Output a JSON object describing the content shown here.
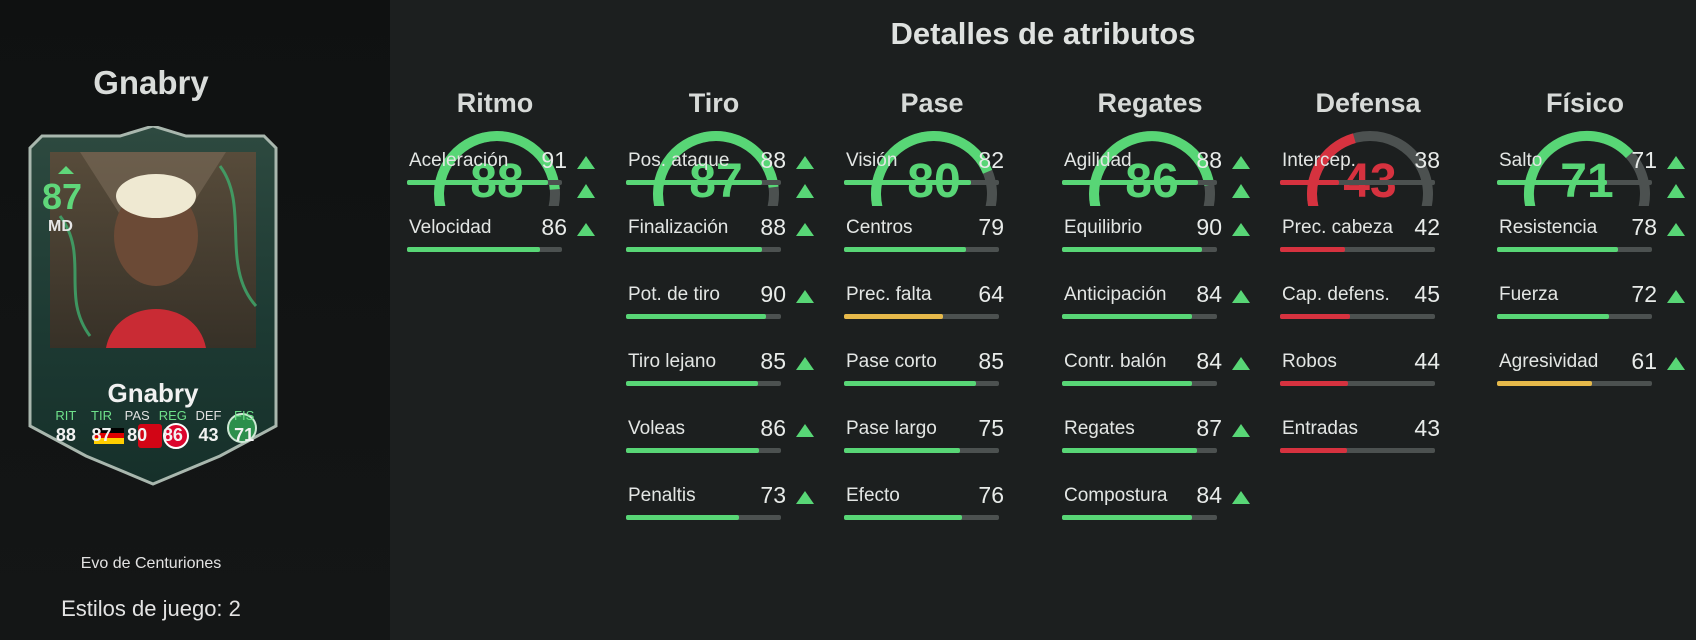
{
  "player": {
    "title": "Gnabry",
    "card": {
      "rating": "87",
      "position": "MD",
      "name": "Gnabry",
      "stats": [
        {
          "label": "RIT",
          "value": "88",
          "green": true
        },
        {
          "label": "TIR",
          "value": "87",
          "green": true
        },
        {
          "label": "PAS",
          "value": "80",
          "green": false
        },
        {
          "label": "REG",
          "value": "86",
          "green": true
        },
        {
          "label": "DEF",
          "value": "43",
          "green": false
        },
        {
          "label": "FIS",
          "value": "71",
          "green": true
        }
      ]
    },
    "evolution": "Evo de Centuriones",
    "playstyles": "Estilos de juego: 2"
  },
  "main_title": "Detalles de atributos",
  "colors": {
    "green": "#58d676",
    "yellow": "#e6b94a",
    "red": "#d6323f",
    "track": "#4c5150"
  },
  "categories": [
    {
      "name": "Ritmo",
      "value": 88,
      "display": "88",
      "color": "green",
      "arrow": true,
      "stats": [
        {
          "label": "Aceleración",
          "value": 91,
          "display": "91",
          "arrow": true,
          "color": "green"
        },
        {
          "label": "Velocidad",
          "value": 86,
          "display": "86",
          "arrow": true,
          "color": "green"
        }
      ]
    },
    {
      "name": "Tiro",
      "value": 87,
      "display": "87",
      "color": "green",
      "arrow": true,
      "stats": [
        {
          "label": "Pos. ataque",
          "value": 88,
          "display": "88",
          "arrow": true,
          "color": "green"
        },
        {
          "label": "Finalización",
          "value": 88,
          "display": "88",
          "arrow": true,
          "color": "green"
        },
        {
          "label": "Pot. de tiro",
          "value": 90,
          "display": "90",
          "arrow": true,
          "color": "green"
        },
        {
          "label": "Tiro lejano",
          "value": 85,
          "display": "85",
          "arrow": true,
          "color": "green"
        },
        {
          "label": "Voleas",
          "value": 86,
          "display": "86",
          "arrow": true,
          "color": "green"
        },
        {
          "label": "Penaltis",
          "value": 73,
          "display": "73",
          "arrow": true,
          "color": "green"
        }
      ]
    },
    {
      "name": "Pase",
      "value": 80,
      "display": "80",
      "color": "green",
      "arrow": false,
      "stats": [
        {
          "label": "Visión",
          "value": 82,
          "display": "82",
          "arrow": false,
          "color": "green"
        },
        {
          "label": "Centros",
          "value": 79,
          "display": "79",
          "arrow": false,
          "color": "green"
        },
        {
          "label": "Prec. falta",
          "value": 64,
          "display": "64",
          "arrow": false,
          "color": "yellow"
        },
        {
          "label": "Pase corto",
          "value": 85,
          "display": "85",
          "arrow": false,
          "color": "green"
        },
        {
          "label": "Pase largo",
          "value": 75,
          "display": "75",
          "arrow": false,
          "color": "green"
        },
        {
          "label": "Efecto",
          "value": 76,
          "display": "76",
          "arrow": false,
          "color": "green"
        }
      ]
    },
    {
      "name": "Regates",
      "value": 86,
      "display": "86",
      "color": "green",
      "arrow": true,
      "stats": [
        {
          "label": "Agilidad",
          "value": 88,
          "display": "88",
          "arrow": true,
          "color": "green"
        },
        {
          "label": "Equilibrio",
          "value": 90,
          "display": "90",
          "arrow": true,
          "color": "green"
        },
        {
          "label": "Anticipación",
          "value": 84,
          "display": "84",
          "arrow": true,
          "color": "green"
        },
        {
          "label": "Contr. balón",
          "value": 84,
          "display": "84",
          "arrow": true,
          "color": "green"
        },
        {
          "label": "Regates",
          "value": 87,
          "display": "87",
          "arrow": true,
          "color": "green"
        },
        {
          "label": "Compostura",
          "value": 84,
          "display": "84",
          "arrow": true,
          "color": "green"
        }
      ]
    },
    {
      "name": "Defensa",
      "value": 43,
      "display": "43",
      "color": "red",
      "arrow": false,
      "stats": [
        {
          "label": "Intercep.",
          "value": 38,
          "display": "38",
          "arrow": false,
          "color": "red"
        },
        {
          "label": "Prec. cabeza",
          "value": 42,
          "display": "42",
          "arrow": false,
          "color": "red"
        },
        {
          "label": "Cap. defens.",
          "value": 45,
          "display": "45",
          "arrow": false,
          "color": "red"
        },
        {
          "label": "Robos",
          "value": 44,
          "display": "44",
          "arrow": false,
          "color": "red"
        },
        {
          "label": "Entradas",
          "value": 43,
          "display": "43",
          "arrow": false,
          "color": "red"
        }
      ]
    },
    {
      "name": "Físico",
      "value": 71,
      "display": "71",
      "color": "green",
      "arrow": true,
      "stats": [
        {
          "label": "Salto",
          "value": 71,
          "display": "71",
          "arrow": true,
          "color": "green"
        },
        {
          "label": "Resistencia",
          "value": 78,
          "display": "78",
          "arrow": true,
          "color": "green"
        },
        {
          "label": "Fuerza",
          "value": 72,
          "display": "72",
          "arrow": true,
          "color": "green"
        },
        {
          "label": "Agresividad",
          "value": 61,
          "display": "61",
          "arrow": true,
          "color": "yellow"
        }
      ]
    }
  ]
}
